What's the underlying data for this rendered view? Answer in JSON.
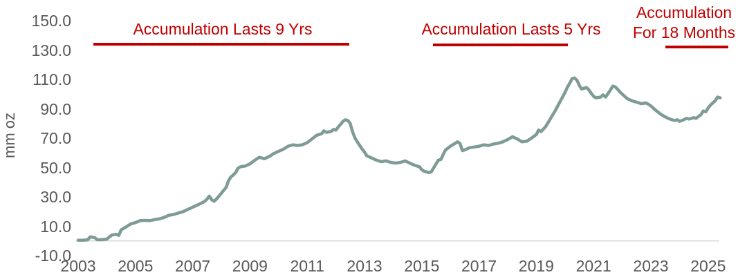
{
  "chart_data": {
    "type": "line",
    "title": "",
    "xlabel": "",
    "ylabel": "mm oz",
    "ylim": [
      -10,
      150
    ],
    "xlim": [
      2003,
      2025.5
    ],
    "grid": false,
    "legend": "none",
    "line_color": "#7e9b95",
    "annotation_color": "#c00000",
    "axis_text_color": "#595959",
    "baseline_color": "#d9d9d9",
    "ytick_labels": [
      "150.0",
      "130.0",
      "110.0",
      "90.0",
      "70.0",
      "50.0",
      "30.0",
      "10.0",
      "-10.0"
    ],
    "ytick_values": [
      150,
      130,
      110,
      90,
      70,
      50,
      30,
      10,
      -10
    ],
    "xtick_labels": [
      "2003",
      "2005",
      "2007",
      "2009",
      "2011",
      "2013",
      "2015",
      "2017",
      "2019",
      "2021",
      "2023",
      "2025"
    ],
    "xtick_values": [
      2003,
      2005,
      2007,
      2009,
      2011,
      2013,
      2015,
      2017,
      2019,
      2021,
      2023,
      2025
    ],
    "annotations": [
      {
        "label": "Accumulation Lasts 9 Yrs",
        "lines": [
          "Accumulation Lasts 9 Yrs"
        ],
        "year_start": 2003.53,
        "year_end": 2012.47
      },
      {
        "label": "Accumulation Lasts 5 Yrs",
        "lines": [
          "Accumulation Lasts 5 Yrs"
        ],
        "year_start": 2015.4,
        "year_end": 2020.12
      },
      {
        "label": "Accumulation For 18 Months",
        "lines": [
          "Accumulation",
          "For 18 Months"
        ],
        "year_start": 2023.5,
        "year_end": 2025.7
      }
    ],
    "x": [
      2003.0,
      2003.17,
      2003.33,
      2003.42,
      2003.58,
      2003.67,
      2003.83,
      2004.0,
      2004.17,
      2004.33,
      2004.42,
      2004.5,
      2004.67,
      2004.83,
      2005.0,
      2005.17,
      2005.33,
      2005.5,
      2005.67,
      2005.83,
      2006.0,
      2006.17,
      2006.33,
      2006.5,
      2006.67,
      2006.83,
      2007.0,
      2007.17,
      2007.33,
      2007.42,
      2007.5,
      2007.58,
      2007.67,
      2007.75,
      2007.83,
      2008.0,
      2008.17,
      2008.25,
      2008.33,
      2008.42,
      2008.5,
      2008.58,
      2008.67,
      2008.83,
      2009.0,
      2009.17,
      2009.33,
      2009.5,
      2009.67,
      2009.83,
      2010.0,
      2010.17,
      2010.33,
      2010.5,
      2010.67,
      2010.83,
      2011.0,
      2011.17,
      2011.33,
      2011.5,
      2011.58,
      2011.67,
      2011.83,
      2011.92,
      2012.0,
      2012.08,
      2012.17,
      2012.25,
      2012.33,
      2012.42,
      2012.5,
      2012.58,
      2012.67,
      2012.83,
      2012.92,
      2013.0,
      2013.08,
      2013.25,
      2013.42,
      2013.58,
      2013.75,
      2013.92,
      2014.08,
      2014.25,
      2014.42,
      2014.58,
      2014.75,
      2014.92,
      2015.0,
      2015.08,
      2015.25,
      2015.33,
      2015.5,
      2015.58,
      2015.67,
      2015.75,
      2015.83,
      2016.0,
      2016.17,
      2016.25,
      2016.33,
      2016.42,
      2016.5,
      2016.67,
      2016.83,
      2017.0,
      2017.17,
      2017.33,
      2017.5,
      2017.67,
      2017.83,
      2018.0,
      2018.17,
      2018.33,
      2018.5,
      2018.67,
      2018.83,
      2019.0,
      2019.08,
      2019.17,
      2019.33,
      2019.5,
      2019.67,
      2019.83,
      2020.0,
      2020.08,
      2020.17,
      2020.25,
      2020.33,
      2020.42,
      2020.5,
      2020.58,
      2020.75,
      2020.83,
      2020.92,
      2021.0,
      2021.08,
      2021.25,
      2021.33,
      2021.42,
      2021.58,
      2021.67,
      2021.75,
      2021.83,
      2021.92,
      2022.0,
      2022.17,
      2022.33,
      2022.5,
      2022.67,
      2022.83,
      2022.92,
      2023.0,
      2023.17,
      2023.33,
      2023.5,
      2023.67,
      2023.83,
      2023.92,
      2024.0,
      2024.08,
      2024.25,
      2024.33,
      2024.5,
      2024.58,
      2024.75,
      2024.83,
      2024.92,
      2025.0,
      2025.08,
      2025.25,
      2025.33,
      2025.42
    ],
    "values": [
      0.5,
      0.5,
      0.7,
      2.8,
      2.2,
      0.8,
      0.8,
      1.2,
      4.0,
      4.5,
      3.8,
      7.5,
      9.5,
      11.5,
      12.5,
      13.8,
      14.0,
      13.8,
      14.5,
      15.0,
      16.0,
      17.5,
      18.0,
      19.0,
      20.0,
      21.5,
      23.0,
      24.5,
      26.0,
      27.0,
      28.5,
      30.5,
      28.0,
      27.0,
      28.5,
      32.5,
      36.5,
      41.0,
      43.5,
      45.0,
      46.5,
      49.5,
      50.5,
      51.0,
      52.5,
      55.0,
      57.0,
      56.0,
      57.5,
      59.5,
      61.0,
      62.5,
      64.5,
      65.5,
      65.0,
      65.5,
      67.0,
      69.5,
      72.0,
      73.0,
      75.0,
      74.0,
      74.5,
      76.0,
      75.5,
      77.5,
      79.5,
      81.5,
      82.5,
      82.0,
      80.0,
      74.5,
      70.0,
      65.0,
      62.5,
      60.5,
      58.0,
      56.5,
      55.0,
      54.0,
      54.5,
      53.5,
      53.0,
      53.5,
      54.5,
      53.0,
      51.5,
      50.5,
      48.5,
      47.5,
      46.5,
      47.0,
      52.5,
      55.0,
      55.5,
      59.0,
      62.0,
      64.5,
      66.5,
      67.5,
      66.5,
      61.5,
      62.0,
      63.5,
      64.0,
      64.5,
      65.5,
      65.0,
      66.0,
      66.5,
      67.5,
      69.0,
      71.0,
      69.5,
      67.5,
      68.0,
      70.0,
      72.5,
      75.5,
      74.5,
      78.0,
      83.5,
      89.0,
      95.0,
      101.0,
      104.5,
      107.5,
      110.5,
      111.0,
      109.5,
      106.0,
      103.5,
      104.5,
      103.0,
      100.5,
      98.5,
      97.5,
      98.0,
      99.5,
      98.0,
      102.5,
      105.5,
      105.0,
      103.5,
      101.5,
      100.0,
      97.0,
      95.5,
      94.5,
      93.5,
      94.0,
      93.0,
      92.0,
      89.0,
      86.5,
      84.5,
      83.0,
      82.0,
      82.5,
      81.5,
      82.0,
      83.5,
      83.0,
      84.0,
      83.5,
      86.0,
      88.5,
      88.0,
      90.5,
      92.5,
      95.5,
      98.0,
      97.5
    ]
  }
}
